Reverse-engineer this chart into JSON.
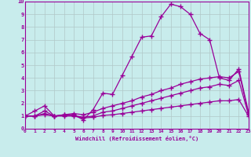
{
  "xlabel": "Windchill (Refroidissement éolien,°C)",
  "xlim": [
    0,
    23
  ],
  "ylim": [
    0,
    10
  ],
  "xticks": [
    0,
    1,
    2,
    3,
    4,
    5,
    6,
    7,
    8,
    9,
    10,
    11,
    12,
    13,
    14,
    15,
    16,
    17,
    18,
    19,
    20,
    21,
    22,
    23
  ],
  "yticks": [
    0,
    1,
    2,
    3,
    4,
    5,
    6,
    7,
    8,
    9,
    10
  ],
  "bg_color": "#c8ecec",
  "line_color": "#990099",
  "grid_color": "#b0c8c8",
  "lines": [
    {
      "x": [
        0,
        1,
        2,
        3,
        4,
        5,
        6,
        7,
        8,
        9,
        10,
        11,
        12,
        13,
        14,
        15,
        16,
        17,
        18,
        19,
        20,
        21,
        22,
        23
      ],
      "y": [
        1.0,
        1.4,
        1.8,
        1.0,
        1.1,
        1.1,
        0.7,
        1.5,
        2.8,
        2.7,
        4.2,
        5.7,
        7.2,
        7.3,
        8.8,
        9.8,
        9.6,
        9.0,
        7.5,
        7.0,
        4.0,
        3.8,
        4.7,
        1.3
      ],
      "marker": "+",
      "markersize": 4,
      "linewidth": 0.9
    },
    {
      "x": [
        0,
        1,
        2,
        3,
        4,
        5,
        6,
        7,
        8,
        9,
        10,
        11,
        12,
        13,
        14,
        15,
        16,
        17,
        18,
        19,
        20,
        21,
        22,
        23
      ],
      "y": [
        1.0,
        1.0,
        1.4,
        1.0,
        1.1,
        1.2,
        1.1,
        1.3,
        1.6,
        1.8,
        2.0,
        2.2,
        2.5,
        2.7,
        3.0,
        3.2,
        3.5,
        3.7,
        3.9,
        4.0,
        4.1,
        4.0,
        4.5,
        1.2
      ],
      "marker": "+",
      "markersize": 4,
      "linewidth": 0.9
    },
    {
      "x": [
        0,
        1,
        2,
        3,
        4,
        5,
        6,
        7,
        8,
        9,
        10,
        11,
        12,
        13,
        14,
        15,
        16,
        17,
        18,
        19,
        20,
        21,
        22,
        23
      ],
      "y": [
        1.0,
        1.0,
        1.2,
        1.0,
        1.05,
        1.05,
        0.9,
        1.0,
        1.3,
        1.4,
        1.6,
        1.8,
        2.0,
        2.2,
        2.4,
        2.6,
        2.8,
        3.0,
        3.2,
        3.3,
        3.5,
        3.4,
        3.8,
        1.1
      ],
      "marker": "+",
      "markersize": 4,
      "linewidth": 0.9
    },
    {
      "x": [
        0,
        1,
        2,
        3,
        4,
        5,
        6,
        7,
        8,
        9,
        10,
        11,
        12,
        13,
        14,
        15,
        16,
        17,
        18,
        19,
        20,
        21,
        22,
        23
      ],
      "y": [
        1.0,
        1.0,
        1.1,
        1.0,
        1.0,
        1.0,
        0.85,
        0.9,
        1.05,
        1.1,
        1.2,
        1.3,
        1.4,
        1.5,
        1.6,
        1.7,
        1.8,
        1.9,
        2.0,
        2.1,
        2.2,
        2.2,
        2.3,
        1.0
      ],
      "marker": "+",
      "markersize": 4,
      "linewidth": 0.9
    }
  ]
}
